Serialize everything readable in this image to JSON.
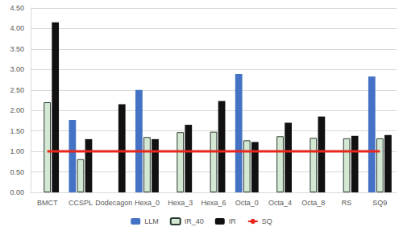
{
  "chart_data": {
    "type": "bar",
    "categories": [
      "BMCT",
      "CCSPL",
      "Dodecagon",
      "Hexa_0",
      "Hexa_3",
      "Hexa_6",
      "Octa_0",
      "Octa_4",
      "Octa_8",
      "RS",
      "SQ9"
    ],
    "series": [
      {
        "name": "LLM",
        "type": "bar",
        "color": "#4472c4",
        "values": [
          null,
          1.77,
          null,
          2.5,
          null,
          null,
          2.89,
          null,
          null,
          null,
          2.83
        ]
      },
      {
        "name": "IR_40",
        "type": "bar",
        "color": "#d5e8d4",
        "values": [
          2.2,
          0.81,
          null,
          1.35,
          1.47,
          1.48,
          1.27,
          1.37,
          1.33,
          1.32,
          1.32
        ]
      },
      {
        "name": "IR",
        "type": "bar",
        "color": "#111111",
        "values": [
          4.15,
          1.3,
          2.15,
          1.3,
          1.65,
          2.23,
          1.23,
          1.7,
          1.85,
          1.38,
          1.4
        ]
      },
      {
        "name": "SQ",
        "type": "line",
        "color": "#e8261c",
        "values": [
          1,
          1,
          1,
          1,
          1,
          1,
          1,
          1,
          1,
          1,
          1
        ]
      }
    ],
    "ylim": [
      0,
      4.5
    ],
    "yticks": [
      {
        "value": 0,
        "label": "0.00"
      },
      {
        "value": 0.5,
        "label": "0.50"
      },
      {
        "value": 1,
        "label": "1.00"
      },
      {
        "value": 1.5,
        "label": "1.50"
      },
      {
        "value": 2,
        "label": "2.00"
      },
      {
        "value": 2.5,
        "label": "2.50"
      },
      {
        "value": 3,
        "label": "3.00"
      },
      {
        "value": 3.5,
        "label": "3.50"
      },
      {
        "value": 4,
        "label": "4.00"
      },
      {
        "value": 4.5,
        "label": "4.50"
      }
    ],
    "grid": true,
    "legend": "bottom"
  }
}
